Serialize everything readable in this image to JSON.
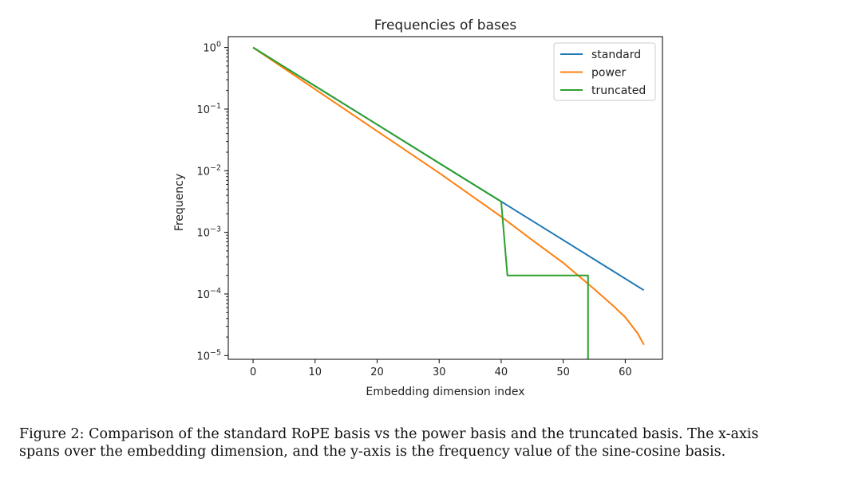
{
  "chart_data": {
    "type": "line",
    "title": "Frequencies of bases",
    "xlabel": "Embedding dimension index",
    "ylabel": "Frequency",
    "yscale": "log",
    "xlim": [
      -4,
      66
    ],
    "ylim": [
      8.7e-06,
      1.5
    ],
    "xticks": [
      0,
      10,
      20,
      30,
      40,
      50,
      60
    ],
    "yticks": [
      {
        "value": 1,
        "base": "10",
        "exp": "0"
      },
      {
        "value": 0.1,
        "base": "10",
        "exp": "−1"
      },
      {
        "value": 0.01,
        "base": "10",
        "exp": "−2"
      },
      {
        "value": 0.001,
        "base": "10",
        "exp": "−3"
      },
      {
        "value": 0.0001,
        "base": "10",
        "exp": "−4"
      },
      {
        "value": 1e-05,
        "base": "10",
        "exp": "−5"
      }
    ],
    "legend_position": "top-right",
    "series": [
      {
        "name": "standard",
        "color": "#1f77b4",
        "x": [
          0,
          10,
          20,
          30,
          40,
          50,
          63
        ],
        "y": [
          1.0,
          0.237,
          0.0562,
          0.0133,
          0.00316,
          0.00075,
          0.000115
        ]
      },
      {
        "name": "power",
        "color": "#ff7f0e",
        "x": [
          0,
          10,
          20,
          30,
          40,
          45,
          50,
          55,
          58,
          60,
          62,
          63
        ],
        "y": [
          1.0,
          0.21,
          0.044,
          0.0092,
          0.0018,
          0.00075,
          0.00032,
          0.00012,
          6.5e-05,
          4.2e-05,
          2.3e-05,
          1.5e-05
        ]
      },
      {
        "name": "truncated",
        "color": "#2ca02c",
        "x": [
          0,
          10,
          20,
          30,
          40,
          41,
          54,
          54
        ],
        "y": [
          1.0,
          0.237,
          0.0562,
          0.0133,
          0.00316,
          0.0002,
          0.0002,
          8.7e-06
        ]
      }
    ]
  },
  "caption": {
    "line1": "Figure 2: Comparison of the standard RoPE basis vs the power basis and the truncated basis. The x-axis",
    "line2": "spans over the embedding dimension, and the y-axis is the frequency value of the sine-cosine basis."
  }
}
